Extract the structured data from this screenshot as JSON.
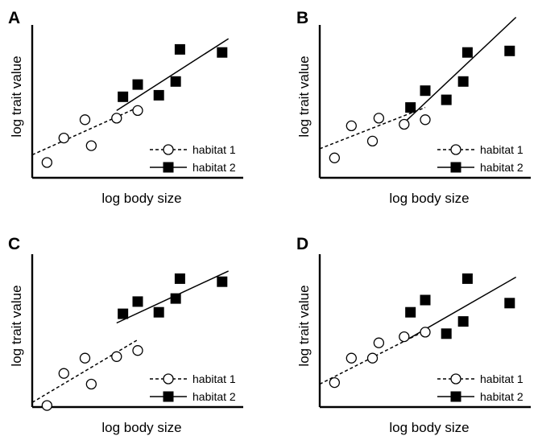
{
  "chart_data": [
    {
      "type": "scatter",
      "panel": "A",
      "xlabel": "log body size",
      "ylabel": "log trait value",
      "xlim": [
        0,
        10
      ],
      "ylim": [
        0,
        10
      ],
      "legend": "bottom-right",
      "series": [
        {
          "name": "habitat 1",
          "marker": "open-circle",
          "line": "dashed",
          "x": [
            0.7,
            1.5,
            2.5,
            2.8,
            4.0,
            5.0
          ],
          "y": [
            1.0,
            2.6,
            3.8,
            2.1,
            3.9,
            4.4
          ],
          "fit": [
            [
              0.0,
              1.5
            ],
            [
              5.0,
              4.6
            ]
          ]
        },
        {
          "name": "habitat 2",
          "marker": "filled-square",
          "line": "solid",
          "x": [
            4.3,
            5.0,
            6.0,
            6.8,
            7.0,
            9.0
          ],
          "y": [
            5.3,
            6.1,
            5.4,
            6.3,
            8.4,
            8.2
          ],
          "fit": [
            [
              4.0,
              4.4
            ],
            [
              9.3,
              9.1
            ]
          ]
        }
      ]
    },
    {
      "type": "scatter",
      "panel": "B",
      "xlabel": "log body size",
      "ylabel": "log trait value",
      "xlim": [
        0,
        10
      ],
      "ylim": [
        0,
        10
      ],
      "legend": "bottom-right",
      "series": [
        {
          "name": "habitat 1",
          "marker": "open-circle",
          "line": "dashed",
          "x": [
            0.7,
            1.5,
            2.5,
            2.8,
            4.0,
            5.0
          ],
          "y": [
            1.3,
            3.4,
            2.4,
            3.9,
            3.5,
            3.8
          ],
          "fit": [
            [
              0.0,
              1.9
            ],
            [
              5.0,
              4.6
            ]
          ]
        },
        {
          "name": "habitat 2",
          "marker": "filled-square",
          "line": "solid",
          "x": [
            4.3,
            5.0,
            6.0,
            6.8,
            7.0,
            9.0
          ],
          "y": [
            4.6,
            5.7,
            5.1,
            6.3,
            8.2,
            8.3
          ],
          "fit": [
            [
              4.0,
              3.6
            ],
            [
              9.3,
              10.5
            ]
          ]
        }
      ]
    },
    {
      "type": "scatter",
      "panel": "C",
      "xlabel": "log body size",
      "ylabel": "log trait value",
      "xlim": [
        0,
        10
      ],
      "ylim": [
        0,
        10
      ],
      "legend": "bottom-right",
      "series": [
        {
          "name": "habitat 1",
          "marker": "open-circle",
          "line": "dashed",
          "x": [
            0.7,
            1.5,
            2.5,
            2.8,
            4.0,
            5.0
          ],
          "y": [
            0.1,
            2.2,
            3.2,
            1.5,
            3.3,
            3.7
          ],
          "fit": [
            [
              0.0,
              0.3
            ],
            [
              5.0,
              4.4
            ]
          ]
        },
        {
          "name": "habitat 2",
          "marker": "filled-square",
          "line": "solid",
          "x": [
            4.3,
            5.0,
            6.0,
            6.8,
            7.0,
            9.0
          ],
          "y": [
            6.1,
            6.9,
            6.2,
            7.1,
            8.4,
            8.2
          ],
          "fit": [
            [
              4.0,
              5.5
            ],
            [
              9.3,
              8.9
            ]
          ]
        }
      ]
    },
    {
      "type": "scatter",
      "panel": "D",
      "xlabel": "log body size",
      "ylabel": "log trait value",
      "xlim": [
        0,
        10
      ],
      "ylim": [
        0,
        10
      ],
      "legend": "bottom-right",
      "series": [
        {
          "name": "habitat 1",
          "marker": "open-circle",
          "line": "dashed",
          "x": [
            0.7,
            1.5,
            2.5,
            2.8,
            4.0,
            5.0
          ],
          "y": [
            1.6,
            3.2,
            3.2,
            4.2,
            4.6,
            4.9
          ],
          "fit": [
            [
              0.0,
              1.5
            ],
            [
              5.0,
              5.0
            ]
          ]
        },
        {
          "name": "habitat 2",
          "marker": "filled-square",
          "line": "solid",
          "x": [
            4.3,
            5.0,
            6.0,
            6.8,
            7.0,
            9.0
          ],
          "y": [
            6.2,
            7.0,
            4.8,
            5.6,
            8.4,
            6.8
          ],
          "fit": [
            [
              4.0,
              4.3
            ],
            [
              9.3,
              8.5
            ]
          ]
        }
      ]
    }
  ]
}
